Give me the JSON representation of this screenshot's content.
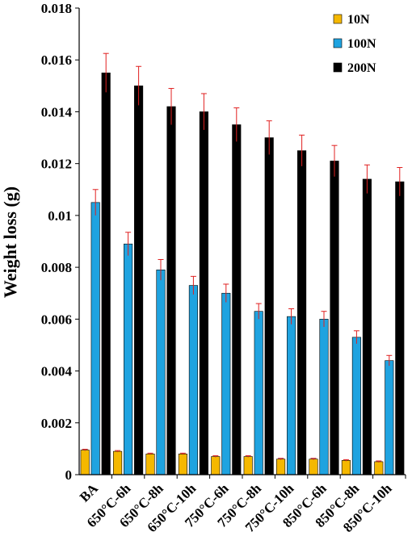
{
  "chart_data": {
    "type": "bar",
    "title": "",
    "xlabel": "",
    "ylabel": "Weight loss (g)",
    "ylim": [
      0,
      0.018
    ],
    "yticks": [
      "0",
      "0.002",
      "0.004",
      "0.006",
      "0.008",
      "0.01",
      "0.012",
      "0.014",
      "0.016",
      "0.018"
    ],
    "categories": [
      "BA",
      "650°C-6h",
      "650°C-8h",
      "650°C-10h",
      "750°C-6h",
      "750°C-8h",
      "750°C-10h",
      "850°C-6h",
      "850°C-8h",
      "850°C-10h"
    ],
    "series": [
      {
        "name": "10N",
        "color": "#f5b800",
        "values": [
          0.00095,
          0.0009,
          0.0008,
          0.0008,
          0.0007,
          0.0007,
          0.0006,
          0.0006,
          0.00055,
          0.0005
        ],
        "errors": [
          3e-05,
          3e-05,
          3e-05,
          3e-05,
          3e-05,
          3e-05,
          3e-05,
          3e-05,
          3e-05,
          3e-05
        ]
      },
      {
        "name": "100N",
        "color": "#1fa3e0",
        "values": [
          0.0105,
          0.0089,
          0.0079,
          0.0073,
          0.007,
          0.0063,
          0.0061,
          0.006,
          0.0053,
          0.0044
        ],
        "errors": [
          0.0005,
          0.00045,
          0.0004,
          0.00035,
          0.00035,
          0.0003,
          0.0003,
          0.0003,
          0.00025,
          0.0002
        ]
      },
      {
        "name": "200N",
        "color": "#000000",
        "values": [
          0.0155,
          0.015,
          0.0142,
          0.014,
          0.0135,
          0.013,
          0.0125,
          0.0121,
          0.0114,
          0.0113
        ],
        "errors": [
          0.00075,
          0.00075,
          0.0007,
          0.0007,
          0.00065,
          0.00065,
          0.0006,
          0.0006,
          0.00055,
          0.00055
        ]
      }
    ],
    "error_bar_color": "#e02020",
    "legend_position": "top-right",
    "grid": false
  }
}
